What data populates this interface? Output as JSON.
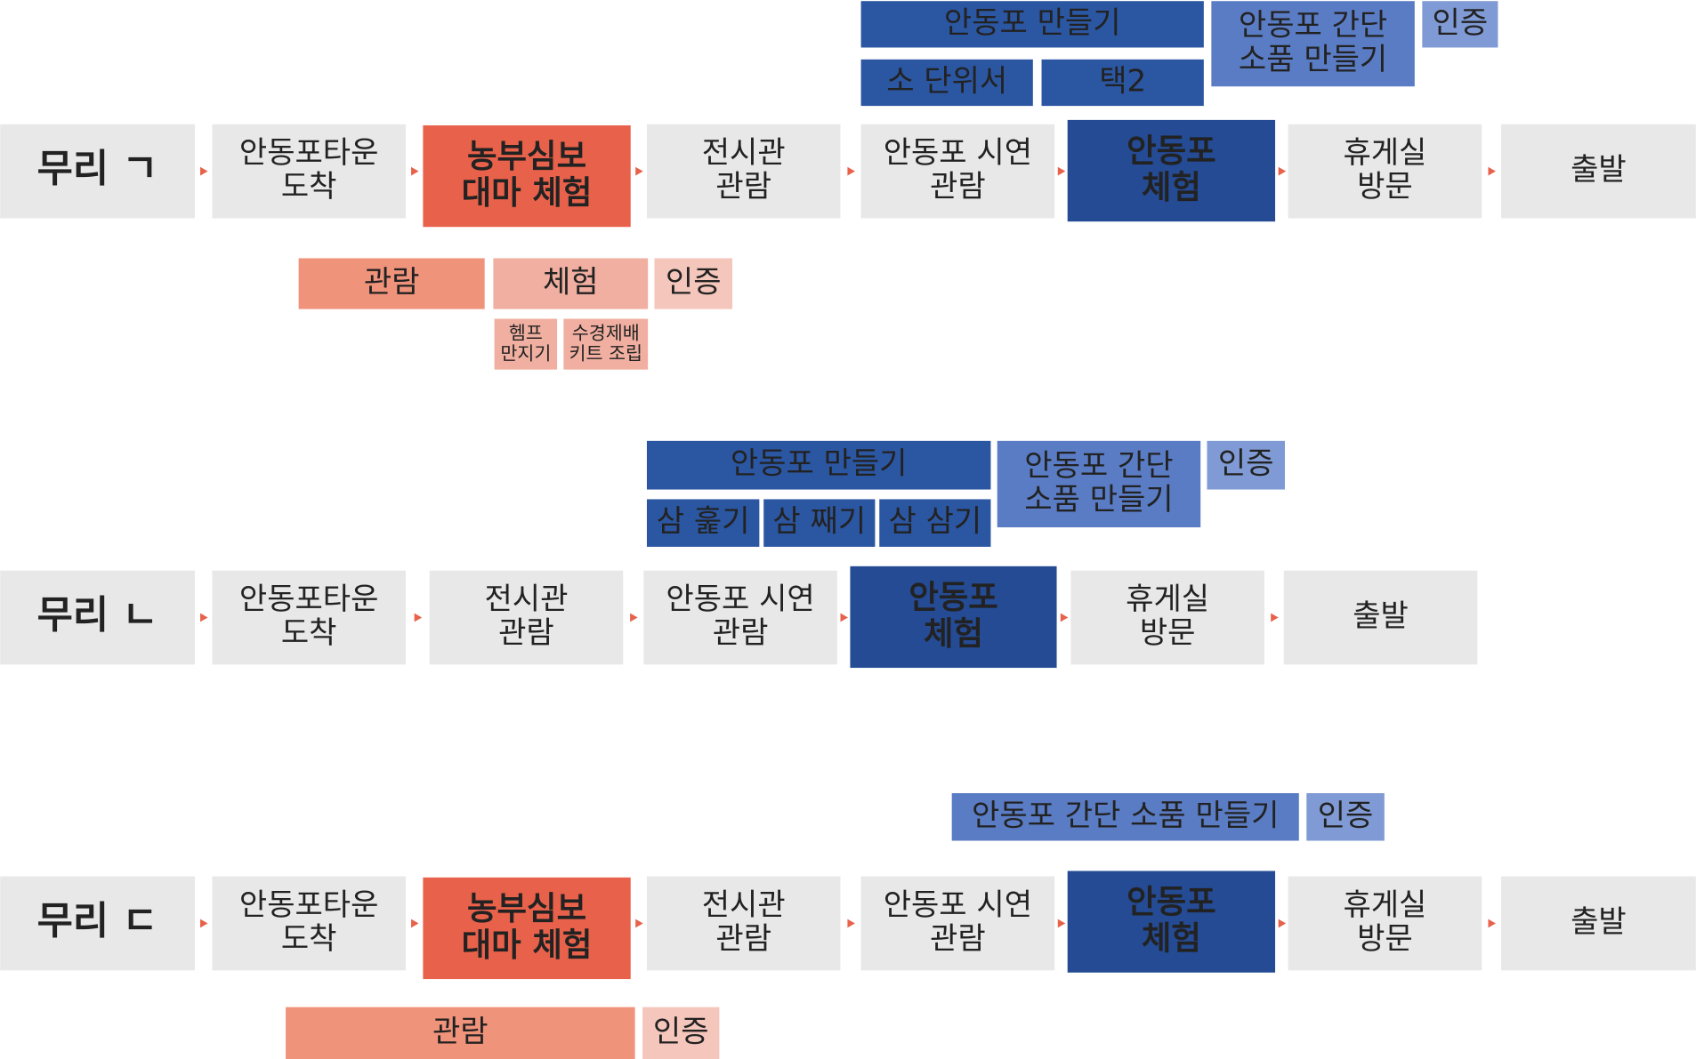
{
  "groups": [
    {
      "label": "무리 ㄱ",
      "steps": [
        [
          "안동포타운",
          "도착"
        ],
        [
          "농부심보",
          "대마 체험"
        ],
        [
          "전시관",
          "관람"
        ],
        [
          "안동포 시연",
          "관람"
        ],
        [
          "안동포",
          "체험"
        ],
        [
          "휴게실",
          "방문"
        ],
        [
          "출발"
        ]
      ],
      "above": [
        [
          "안동포 만들기"
        ],
        [
          "소 단위서"
        ],
        [
          "택2"
        ],
        [
          "안동포 간단",
          "소품 만들기"
        ],
        [
          "인증"
        ]
      ],
      "below": [
        [
          "관람"
        ],
        [
          "체험"
        ],
        [
          "인증"
        ],
        [
          "헴프",
          "만지기"
        ],
        [
          "수경제배",
          "키트 조립"
        ]
      ]
    },
    {
      "label": "무리 ㄴ",
      "steps": [
        [
          "안동포타운",
          "도착"
        ],
        [
          "전시관",
          "관람"
        ],
        [
          "안동포 시연",
          "관람"
        ],
        [
          "안동포",
          "체험"
        ],
        [
          "휴게실",
          "방문"
        ],
        [
          "출발"
        ]
      ],
      "above": [
        [
          "안동포 만들기"
        ],
        [
          "삼 훑기"
        ],
        [
          "삼 째기"
        ],
        [
          "삼 삼기"
        ],
        [
          "안동포 간단",
          "소품 만들기"
        ],
        [
          "인증"
        ]
      ],
      "below": []
    },
    {
      "label": "무리 ㄷ",
      "steps": [
        [
          "안동포타운",
          "도착"
        ],
        [
          "농부심보",
          "대마 체험"
        ],
        [
          "전시관",
          "관람"
        ],
        [
          "안동포 시연",
          "관람"
        ],
        [
          "안동포",
          "체험"
        ],
        [
          "휴게실",
          "방문"
        ],
        [
          "출발"
        ]
      ],
      "above": [
        [
          "안동포 간단 소품 만들기"
        ],
        [
          "인증"
        ]
      ],
      "below": [
        [
          "관람"
        ],
        [
          "인증"
        ]
      ]
    }
  ]
}
